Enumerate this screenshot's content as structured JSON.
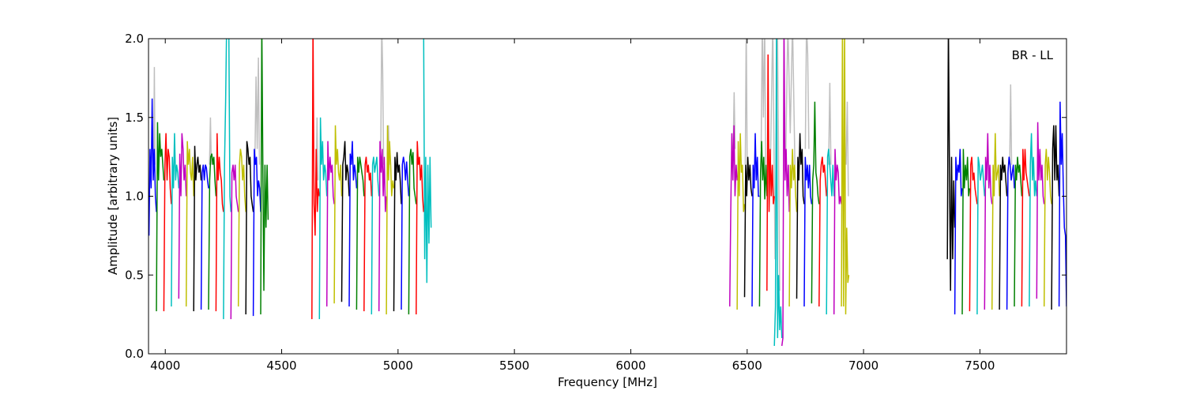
{
  "chart_data": {
    "type": "line",
    "xlabel": "Frequency [MHz]",
    "ylabel": "Amplitude [arbitrary units]",
    "annotation": "BR - LL",
    "xlim": [
      3928,
      7872
    ],
    "ylim": [
      0.0,
      2.0
    ],
    "xticks": [
      4000,
      4500,
      5000,
      5500,
      6000,
      6500,
      7000,
      7500
    ],
    "yticks": [
      0.0,
      0.5,
      1.0,
      1.5,
      2.0
    ],
    "xtick_labels": [
      "4000",
      "4500",
      "5000",
      "5500",
      "6000",
      "6500",
      "7000",
      "7500"
    ],
    "ytick_labels": [
      "0.0",
      "0.5",
      "1.0",
      "1.5",
      "2.0"
    ],
    "grid": false,
    "palette": {
      "b": "#0000ff",
      "g": "#008000",
      "r": "#ff0000",
      "c": "#00bfbf",
      "m": "#bf00bf",
      "y": "#bfbf00",
      "k": "#000000",
      "gray": "#bfbfbf"
    },
    "reference_series": [
      {
        "color": "gray",
        "x": [
          3950,
          3953,
          3956
        ],
        "y": [
          1.2,
          1.82,
          1.2
        ]
      },
      {
        "color": "gray",
        "x": [
          4190,
          4194,
          4198
        ],
        "y": [
          1.2,
          1.5,
          1.2
        ]
      },
      {
        "color": "gray",
        "x": [
          4385,
          4390,
          4395,
          4400,
          4405
        ],
        "y": [
          1.2,
          1.76,
          1.3,
          1.88,
          1.2
        ]
      },
      {
        "color": "gray",
        "x": [
          4648,
          4652,
          4656
        ],
        "y": [
          1.1,
          1.5,
          1.1
        ]
      },
      {
        "color": "gray",
        "x": [
          4926,
          4930,
          4934,
          4938
        ],
        "y": [
          1.3,
          2.1,
          1.8,
          1.2
        ]
      },
      {
        "color": "gray",
        "x": [
          4955,
          4959,
          4963
        ],
        "y": [
          1.2,
          1.45,
          1.2
        ]
      },
      {
        "color": "gray",
        "x": [
          6440,
          6444,
          6448
        ],
        "y": [
          1.3,
          1.66,
          1.3
        ]
      },
      {
        "color": "gray",
        "x": [
          6492,
          6496,
          6500
        ],
        "y": [
          1.2,
          2.1,
          1.2
        ]
      },
      {
        "color": "gray",
        "x": [
          6560,
          6565,
          6570,
          6575,
          6580
        ],
        "y": [
          1.3,
          2.1,
          1.5,
          2.1,
          1.2
        ]
      },
      {
        "color": "gray",
        "x": [
          6600,
          6610,
          6620,
          6630,
          6640
        ],
        "y": [
          1.2,
          2.1,
          0.6,
          2.1,
          0.4
        ]
      },
      {
        "color": "gray",
        "x": [
          6665,
          6675,
          6685,
          6695,
          6705
        ],
        "y": [
          1.2,
          2.1,
          1.4,
          2.1,
          1.2
        ]
      },
      {
        "color": "gray",
        "x": [
          6750,
          6755,
          6760,
          6765
        ],
        "y": [
          1.3,
          2.1,
          1.9,
          1.3
        ]
      },
      {
        "color": "gray",
        "x": [
          6850,
          6855,
          6860
        ],
        "y": [
          1.2,
          1.72,
          1.2
        ]
      },
      {
        "color": "gray",
        "x": [
          6925,
          6930,
          6935
        ],
        "y": [
          1.2,
          1.6,
          1.0
        ]
      },
      {
        "color": "gray",
        "x": [
          7628,
          7632,
          7636
        ],
        "y": [
          1.2,
          1.71,
          1.2
        ]
      }
    ],
    "window_width_mhz": 32,
    "series": [
      {
        "color": "b",
        "start": 3930,
        "y": [
          0.75,
          1.3,
          1.05,
          1.62,
          1.1,
          1.3,
          1.0,
          0.9
        ]
      },
      {
        "color": "g",
        "start": 3962,
        "y": [
          0.27,
          1.47,
          1.1,
          1.4,
          1.25,
          1.3,
          1.2,
          1.1
        ]
      },
      {
        "color": "r",
        "start": 3994,
        "y": [
          0.27,
          1.2,
          1.4,
          1.1,
          1.3,
          1.25,
          1.05,
          0.95
        ]
      },
      {
        "color": "c",
        "start": 4026,
        "y": [
          0.3,
          1.25,
          1.05,
          1.4,
          1.1,
          1.2,
          1.15,
          1.05
        ]
      },
      {
        "color": "m",
        "start": 4058,
        "y": [
          0.35,
          1.27,
          1.0,
          1.4,
          1.3,
          1.1,
          1.2,
          1.0
        ]
      },
      {
        "color": "y",
        "start": 4090,
        "y": [
          0.3,
          1.35,
          1.2,
          1.3,
          1.15,
          1.1,
          1.25,
          1.0
        ]
      },
      {
        "color": "k",
        "start": 4122,
        "y": [
          0.27,
          1.32,
          1.1,
          1.2,
          1.25,
          1.15,
          1.2,
          1.1
        ]
      },
      {
        "color": "b",
        "start": 4154,
        "y": [
          0.28,
          1.15,
          1.2,
          1.1,
          1.2,
          1.18,
          1.1,
          1.05
        ]
      },
      {
        "color": "g",
        "start": 4186,
        "y": [
          0.28,
          1.1,
          1.25,
          1.27,
          1.2,
          1.25,
          1.1,
          1.0
        ]
      },
      {
        "color": "r",
        "start": 4218,
        "y": [
          0.27,
          1.4,
          1.1,
          1.25,
          1.15,
          1.1,
          0.95,
          0.9
        ]
      },
      {
        "color": "c",
        "start": 4250,
        "y": [
          0.22,
          1.2,
          1.6,
          2.1,
          2.1,
          2.1,
          1.0,
          0.9
        ]
      },
      {
        "color": "m",
        "start": 4282,
        "y": [
          0.22,
          1.15,
          1.2,
          1.1,
          1.2,
          1.0,
          0.95,
          0.9
        ]
      },
      {
        "color": "y",
        "start": 4314,
        "y": [
          0.3,
          1.2,
          1.3,
          1.25,
          1.1,
          1.2,
          1.0,
          0.9
        ]
      },
      {
        "color": "k",
        "start": 4346,
        "y": [
          0.25,
          1.35,
          1.3,
          1.2,
          1.25,
          1.0,
          0.95,
          0.9
        ]
      },
      {
        "color": "b",
        "start": 4378,
        "y": [
          0.24,
          1.3,
          1.2,
          1.25,
          1.0,
          1.1,
          1.05,
          0.9
        ]
      },
      {
        "color": "g",
        "start": 4410,
        "y": [
          0.25,
          2.1,
          1.2,
          0.4,
          1.2,
          0.8,
          1.2,
          0.85
        ]
      },
      {
        "color": "r",
        "start": 4630,
        "y": [
          0.22,
          2.1,
          0.95,
          0.75,
          1.3,
          0.9,
          1.05,
          1.0
        ]
      },
      {
        "color": "c",
        "start": 4662,
        "y": [
          0.22,
          1.5,
          1.2,
          1.35,
          1.1,
          1.2,
          1.15,
          1.0
        ]
      },
      {
        "color": "m",
        "start": 4694,
        "y": [
          0.3,
          1.35,
          1.1,
          1.25,
          1.15,
          1.2,
          1.0,
          0.95
        ]
      },
      {
        "color": "y",
        "start": 4726,
        "y": [
          0.32,
          1.45,
          1.2,
          1.3,
          1.15,
          1.1,
          1.2,
          1.0
        ]
      },
      {
        "color": "k",
        "start": 4758,
        "y": [
          0.33,
          1.2,
          1.25,
          1.35,
          1.1,
          1.2,
          1.15,
          1.0
        ]
      },
      {
        "color": "b",
        "start": 4790,
        "y": [
          0.3,
          1.27,
          1.2,
          1.35,
          1.1,
          1.2,
          1.15,
          1.05
        ]
      },
      {
        "color": "g",
        "start": 4822,
        "y": [
          0.28,
          1.25,
          1.15,
          1.25,
          1.2,
          1.15,
          1.1,
          1.0
        ]
      },
      {
        "color": "r",
        "start": 4854,
        "y": [
          0.27,
          1.2,
          1.25,
          1.15,
          1.2,
          1.1,
          1.15,
          1.0
        ]
      },
      {
        "color": "c",
        "start": 4886,
        "y": [
          0.25,
          1.2,
          1.25,
          1.15,
          1.2,
          1.25,
          1.1,
          1.0
        ]
      },
      {
        "color": "m",
        "start": 4918,
        "y": [
          0.27,
          1.35,
          1.15,
          1.3,
          1.0,
          1.25,
          0.9,
          1.0
        ]
      },
      {
        "color": "y",
        "start": 4950,
        "y": [
          0.25,
          1.45,
          1.1,
          1.35,
          1.2,
          1.0,
          1.1,
          1.05
        ]
      },
      {
        "color": "k",
        "start": 4982,
        "y": [
          0.27,
          1.25,
          1.1,
          1.28,
          1.15,
          1.2,
          1.1,
          0.95
        ]
      },
      {
        "color": "b",
        "start": 5014,
        "y": [
          0.28,
          1.2,
          1.25,
          1.2,
          1.1,
          1.22,
          1.1,
          1.0
        ]
      },
      {
        "color": "g",
        "start": 5046,
        "y": [
          0.25,
          1.25,
          1.3,
          1.2,
          1.28,
          1.05,
          1.0,
          0.95
        ]
      },
      {
        "color": "r",
        "start": 5078,
        "y": [
          0.25,
          1.35,
          1.2,
          1.25,
          1.1,
          1.2,
          1.0,
          0.9
        ]
      },
      {
        "color": "c",
        "start": 5110,
        "y": [
          2.1,
          0.6,
          1.25,
          0.45,
          1.2,
          0.7,
          1.25,
          0.8
        ]
      },
      {
        "color": "m",
        "start": 6425,
        "y": [
          0.3,
          0.9,
          1.4,
          1.1,
          1.45,
          1.0,
          1.2,
          1.1
        ]
      },
      {
        "color": "y",
        "start": 6457,
        "y": [
          0.28,
          1.35,
          1.0,
          1.4,
          1.15,
          1.2,
          0.9,
          0.95
        ]
      },
      {
        "color": "k",
        "start": 6489,
        "y": [
          0.36,
          1.2,
          1.0,
          1.25,
          1.1,
          1.2,
          1.05,
          1.0
        ]
      },
      {
        "color": "b",
        "start": 6521,
        "y": [
          0.3,
          1.2,
          1.05,
          1.4,
          1.1,
          1.25,
          1.0,
          1.0
        ]
      },
      {
        "color": "g",
        "start": 6553,
        "y": [
          0.3,
          1.15,
          1.35,
          1.1,
          1.25,
          0.98,
          1.2,
          1.0
        ]
      },
      {
        "color": "r",
        "start": 6585,
        "y": [
          0.4,
          1.9,
          0.9,
          1.3,
          1.0,
          1.2,
          0.95,
          1.0
        ]
      },
      {
        "color": "c",
        "start": 6617,
        "y": [
          0.05,
          0.3,
          2.1,
          0.1,
          0.5,
          0.15,
          0.3,
          0.1
        ]
      },
      {
        "color": "m",
        "start": 6649,
        "y": [
          0.05,
          0.1,
          2.1,
          1.1,
          1.3,
          1.0,
          1.2,
          0.9
        ]
      },
      {
        "color": "y",
        "start": 6681,
        "y": [
          0.3,
          1.2,
          1.05,
          1.3,
          1.1,
          1.2,
          1.0,
          0.9
        ]
      },
      {
        "color": "k",
        "start": 6713,
        "y": [
          0.35,
          1.25,
          1.1,
          1.4,
          1.2,
          1.3,
          1.0,
          0.95
        ]
      },
      {
        "color": "b",
        "start": 6745,
        "y": [
          0.3,
          1.25,
          1.1,
          1.2,
          1.05,
          1.2,
          1.0,
          0.95
        ]
      },
      {
        "color": "g",
        "start": 6777,
        "y": [
          0.32,
          1.1,
          1.2,
          1.6,
          1.15,
          1.1,
          1.0,
          0.95
        ]
      },
      {
        "color": "r",
        "start": 6809,
        "y": [
          0.3,
          1.1,
          1.2,
          1.25,
          1.15,
          1.2,
          1.1,
          1.0
        ]
      },
      {
        "color": "c",
        "start": 6841,
        "y": [
          0.25,
          1.25,
          1.3,
          1.2,
          1.1,
          1.0,
          1.2,
          1.0
        ]
      },
      {
        "color": "m",
        "start": 6873,
        "y": [
          0.25,
          1.3,
          1.1,
          1.2,
          1.15,
          0.95,
          1.0,
          0.95
        ]
      },
      {
        "color": "y",
        "start": 6905,
        "y": [
          0.3,
          2.1,
          0.3,
          2.1,
          0.25,
          0.8,
          0.45,
          0.5
        ]
      },
      {
        "color": "k",
        "start": 7360,
        "y": [
          0.6,
          2.1,
          1.2,
          0.4,
          1.25,
          0.6,
          1.1,
          0.8
        ]
      },
      {
        "color": "b",
        "start": 7392,
        "y": [
          0.25,
          1.25,
          1.1,
          1.2,
          1.15,
          1.3,
          1.0,
          1.05
        ]
      },
      {
        "color": "g",
        "start": 7424,
        "y": [
          0.25,
          1.3,
          1.05,
          1.2,
          1.1,
          1.25,
          1.0,
          1.05
        ]
      },
      {
        "color": "r",
        "start": 7456,
        "y": [
          0.27,
          1.2,
          1.25,
          1.1,
          1.15,
          1.05,
          1.0,
          0.95
        ]
      },
      {
        "color": "c",
        "start": 7488,
        "y": [
          0.25,
          1.25,
          1.2,
          1.1,
          1.15,
          1.2,
          1.1,
          1.0
        ]
      },
      {
        "color": "m",
        "start": 7520,
        "y": [
          0.28,
          1.25,
          1.1,
          1.4,
          1.05,
          1.2,
          1.0,
          0.95
        ]
      },
      {
        "color": "y",
        "start": 7552,
        "y": [
          0.28,
          1.2,
          1.0,
          1.4,
          1.1,
          1.15,
          1.2,
          1.0
        ]
      },
      {
        "color": "k",
        "start": 7584,
        "y": [
          0.28,
          1.2,
          1.1,
          1.25,
          1.15,
          1.2,
          1.1,
          1.0
        ]
      },
      {
        "color": "b",
        "start": 7616,
        "y": [
          0.28,
          1.15,
          1.25,
          1.2,
          1.1,
          1.15,
          1.2,
          1.05
        ]
      },
      {
        "color": "g",
        "start": 7648,
        "y": [
          0.3,
          1.2,
          1.1,
          1.25,
          1.15,
          1.2,
          1.1,
          1.0
        ]
      },
      {
        "color": "r",
        "start": 7680,
        "y": [
          0.3,
          1.3,
          1.1,
          1.3,
          1.15,
          1.1,
          1.05,
          1.0
        ]
      },
      {
        "color": "c",
        "start": 7712,
        "y": [
          0.3,
          1.2,
          1.4,
          1.1,
          1.25,
          1.0,
          1.1,
          1.0
        ]
      },
      {
        "color": "m",
        "start": 7744,
        "y": [
          0.35,
          1.47,
          1.1,
          1.3,
          1.1,
          1.2,
          1.0,
          0.95
        ]
      },
      {
        "color": "y",
        "start": 7776,
        "y": [
          0.3,
          1.2,
          1.3,
          1.1,
          1.25,
          1.15,
          1.0,
          0.95
        ]
      },
      {
        "color": "k",
        "start": 7808,
        "y": [
          0.28,
          1.3,
          1.45,
          1.1,
          1.45,
          1.1,
          1.2,
          1.0
        ]
      },
      {
        "color": "b",
        "start": 7840,
        "y": [
          0.3,
          1.6,
          1.2,
          1.4,
          1.05,
          0.8,
          0.75,
          0.3
        ]
      }
    ]
  }
}
